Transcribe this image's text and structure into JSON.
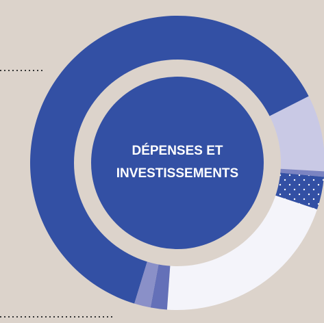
{
  "chart_data": {
    "type": "donut",
    "center_label": [
      "DÉPENSES ET",
      "INVESTISSEMENTS"
    ],
    "values": [
      62.8,
      8.4,
      0.6,
      3.6,
      21,
      1.8,
      1.8
    ],
    "colors": [
      "#3350a4",
      "#c9c9e5",
      "#7b84c2",
      "#3350a4",
      "#f4f4fa",
      "#6470b8",
      "#8a90c8"
    ],
    "patterns": [
      null,
      null,
      null,
      "dots",
      null,
      null,
      null
    ]
  }
}
